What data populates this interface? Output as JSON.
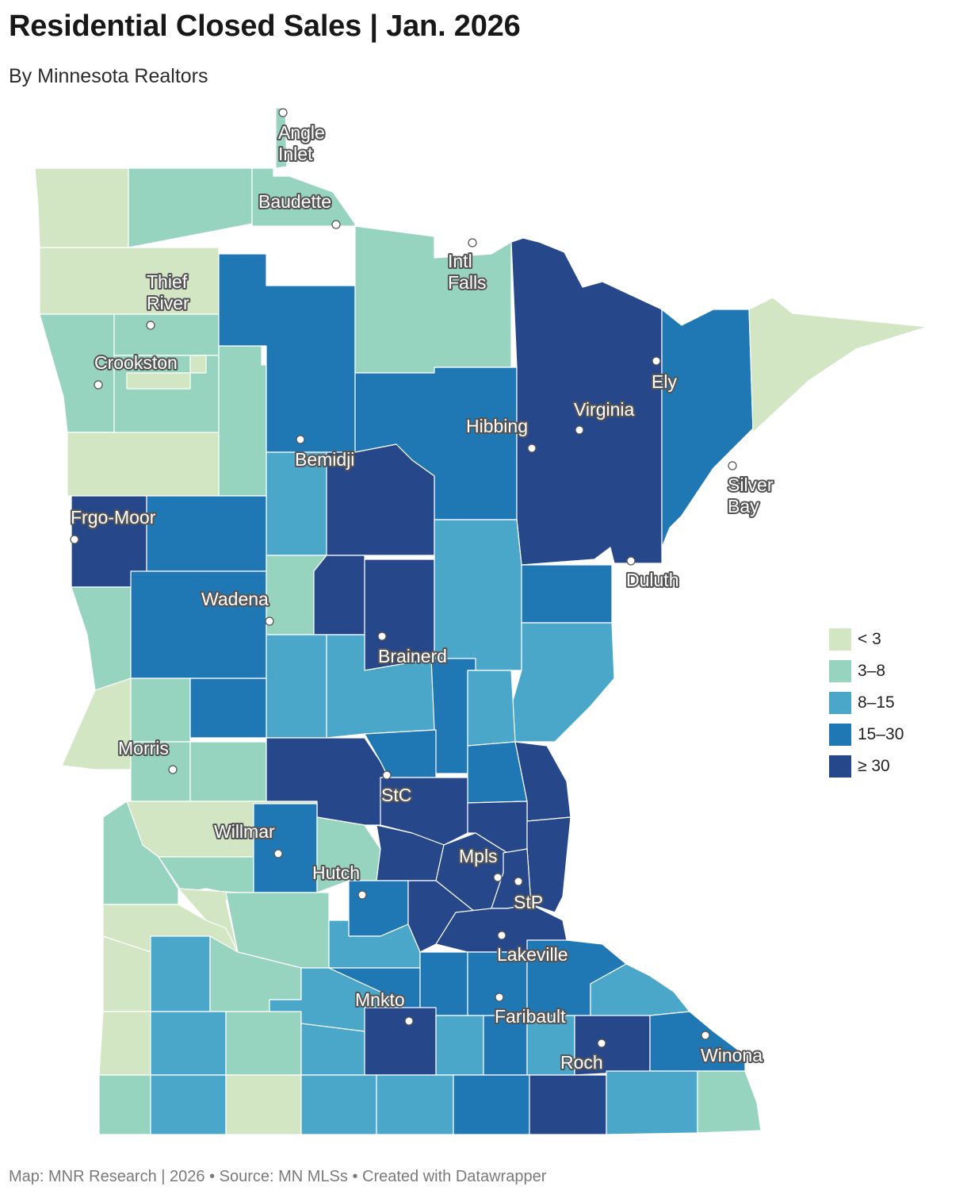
{
  "title": "Residential Closed Sales  |  Jan. 2026",
  "subtitle": "By Minnesota Realtors",
  "footer": "Map: MNR Research | 2026 • Source: MN MLSs • Created with Datawrapper",
  "colors": {
    "lt3": "#d3e6c3",
    "r3_8": "#97d4bf",
    "r8_15": "#4ba7c9",
    "r15_30": "#1f77b4",
    "gte30": "#26478a"
  },
  "legend": [
    {
      "label": "< 3",
      "color": "#d3e6c3"
    },
    {
      "label": "3–8",
      "color": "#97d4bf"
    },
    {
      "label": "8–15",
      "color": "#4ba7c9"
    },
    {
      "label": "15–30",
      "color": "#1f77b4"
    },
    {
      "label": "≥ 30",
      "color": "#26478a"
    }
  ],
  "cities": {
    "angle_inlet": "Angle\nInlet",
    "baudette": "Baudette",
    "intl_falls": "Intl\nFalls",
    "thief_river": "Thief\nRiver",
    "crookston": "Crookston",
    "ely": "Ely",
    "virginia": "Virginia",
    "hibbing": "Hibbing",
    "bemidji": "Bemidji",
    "silver_bay": "Silver\nBay",
    "frgo_moor": "Frgo-Moor",
    "duluth": "Duluth",
    "wadena": "Wadena",
    "brainerd": "Brainerd",
    "morris": "Morris",
    "stc": "StC",
    "willmar": "Willmar",
    "mpls": "Mpls",
    "hutch": "Hutch",
    "stp": "StP",
    "lakeville": "Lakeville",
    "mnkto": "Mnkto",
    "faribault": "Faribault",
    "winona": "Winona",
    "roch": "Roch"
  }
}
